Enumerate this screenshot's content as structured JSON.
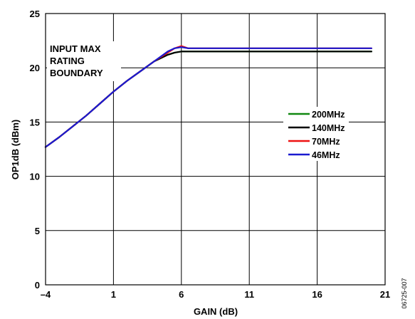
{
  "chart_data": {
    "type": "line",
    "title": "",
    "xlabel": "GAIN (dB)",
    "ylabel": "OP1dB (dBm)",
    "xlim": [
      -4,
      21
    ],
    "ylim": [
      0,
      25
    ],
    "xticks": [
      -4,
      1,
      6,
      11,
      16,
      21
    ],
    "xtick_labels": [
      "–4",
      "1",
      "6",
      "11",
      "16",
      "21"
    ],
    "yticks": [
      0,
      5,
      10,
      15,
      20,
      25
    ],
    "ytick_labels": [
      "0",
      "5",
      "10",
      "15",
      "20",
      "25"
    ],
    "grid": true,
    "legend_position": "center-right",
    "annotation": [
      "INPUT MAX",
      "RATING",
      "BOUNDARY"
    ],
    "figure_code": "06725-007",
    "series": [
      {
        "name": "200MHz",
        "color": "#118811",
        "x": [
          -4,
          -3,
          -2,
          -1,
          0,
          1,
          2,
          3,
          4,
          5,
          5.5,
          6,
          6.5,
          7,
          8,
          10,
          12,
          14,
          16,
          18,
          20
        ],
        "y": [
          12.7,
          13.6,
          14.6,
          15.6,
          16.7,
          17.8,
          18.8,
          19.7,
          20.6,
          21.2,
          21.4,
          21.5,
          21.5,
          21.5,
          21.5,
          21.5,
          21.5,
          21.5,
          21.5,
          21.5,
          21.5
        ]
      },
      {
        "name": "140MHz",
        "color": "#000000",
        "x": [
          -4,
          -3,
          -2,
          -1,
          0,
          1,
          2,
          3,
          4,
          5,
          5.5,
          6,
          6.5,
          7,
          8,
          10,
          12,
          14,
          16,
          18,
          20
        ],
        "y": [
          12.7,
          13.6,
          14.6,
          15.6,
          16.7,
          17.8,
          18.8,
          19.7,
          20.6,
          21.2,
          21.4,
          21.5,
          21.5,
          21.5,
          21.5,
          21.5,
          21.5,
          21.5,
          21.5,
          21.5,
          21.5
        ]
      },
      {
        "name": "70MHz",
        "color": "#ee1111",
        "x": [
          -4,
          -3,
          -2,
          -1,
          0,
          1,
          2,
          3,
          4,
          5,
          5.5,
          6,
          6.5,
          7,
          8,
          10,
          12,
          14,
          16,
          18,
          20
        ],
        "y": [
          12.7,
          13.6,
          14.6,
          15.6,
          16.7,
          17.8,
          18.8,
          19.7,
          20.6,
          21.4,
          21.8,
          22.0,
          21.8,
          21.8,
          21.8,
          21.8,
          21.8,
          21.8,
          21.8,
          21.8,
          21.8
        ]
      },
      {
        "name": "46MHz",
        "color": "#1a1ad0",
        "x": [
          -4,
          -3,
          -2,
          -1,
          0,
          1,
          2,
          3,
          4,
          5,
          5.5,
          6,
          6.5,
          7,
          8,
          10,
          12,
          14,
          16,
          18,
          20
        ],
        "y": [
          12.7,
          13.6,
          14.6,
          15.6,
          16.7,
          17.8,
          18.8,
          19.7,
          20.6,
          21.5,
          21.8,
          21.9,
          21.8,
          21.8,
          21.8,
          21.8,
          21.8,
          21.8,
          21.8,
          21.8,
          21.8
        ]
      }
    ]
  }
}
